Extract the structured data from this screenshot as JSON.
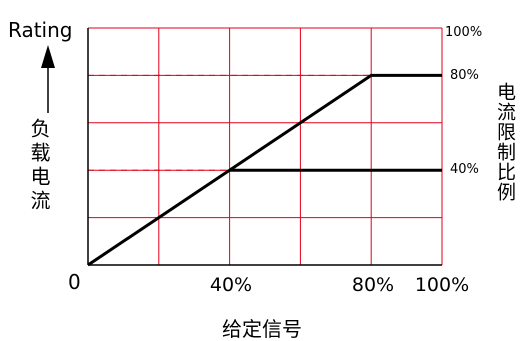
{
  "chart_data": {
    "type": "line",
    "ylabel_top": "Rating",
    "ylabel": "负载电流",
    "xlabel": "给定信号",
    "right_label": "电流限制比例",
    "origin_label": "0",
    "x_tick_labels": [
      "40%",
      "80%",
      "100%"
    ],
    "right_tick_labels": [
      "100%",
      "80%",
      "40%"
    ],
    "xlim": [
      0,
      100
    ],
    "ylim": [
      0,
      100
    ],
    "x_grid": [
      0,
      20,
      40,
      60,
      80,
      100
    ],
    "y_grid": [
      0,
      20,
      40,
      60,
      80,
      100
    ],
    "series": [
      {
        "x": [
          0,
          80,
          100
        ],
        "y": [
          0,
          80,
          80
        ]
      },
      {
        "x": [
          40,
          100
        ],
        "y": [
          40,
          40
        ]
      }
    ],
    "reference_lines": [
      80,
      40
    ],
    "grid_color": "#e0001b",
    "line_color": "#000000"
  }
}
